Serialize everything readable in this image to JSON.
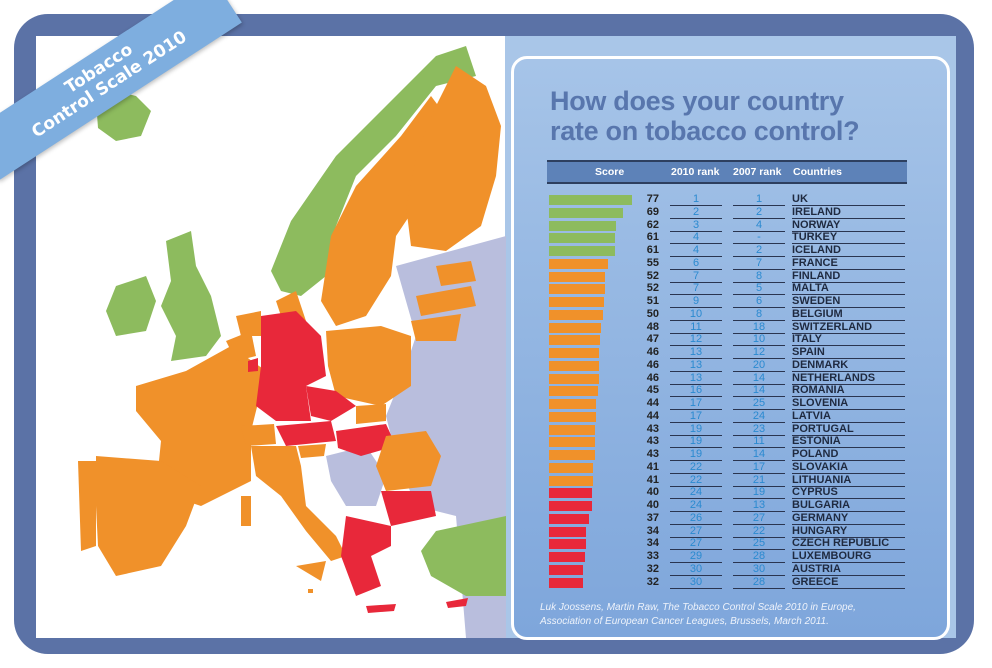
{
  "banner": {
    "line1": "Tobacco",
    "line2": "Control Scale 2010"
  },
  "title": {
    "line1": "How does your country",
    "line2": "rate on tobacco control?"
  },
  "colors": {
    "green": "#8dbb5e",
    "orange": "#f0912a",
    "red": "#e8283a",
    "grey": "#b9bedd",
    "frame": "#5b72a6",
    "panel": "#a9c6e8",
    "title": "#5876ad"
  },
  "chart_data": {
    "type": "table",
    "columns": [
      "Score",
      "2010 rank",
      "2007 rank",
      "Countries"
    ],
    "rows": [
      {
        "score": 77,
        "rank2010": "1",
        "rank2007": "1",
        "country": "UK",
        "group": "green"
      },
      {
        "score": 69,
        "rank2010": "2",
        "rank2007": "2",
        "country": "IRELAND",
        "group": "green"
      },
      {
        "score": 62,
        "rank2010": "3",
        "rank2007": "4",
        "country": "NORWAY",
        "group": "green"
      },
      {
        "score": 61,
        "rank2010": "4",
        "rank2007": "-",
        "country": "TURKEY",
        "group": "green"
      },
      {
        "score": 61,
        "rank2010": "4",
        "rank2007": "2",
        "country": "ICELAND",
        "group": "green"
      },
      {
        "score": 55,
        "rank2010": "6",
        "rank2007": "7",
        "country": "FRANCE",
        "group": "orange"
      },
      {
        "score": 52,
        "rank2010": "7",
        "rank2007": "8",
        "country": "FINLAND",
        "group": "orange"
      },
      {
        "score": 52,
        "rank2010": "7",
        "rank2007": "5",
        "country": "MALTA",
        "group": "orange"
      },
      {
        "score": 51,
        "rank2010": "9",
        "rank2007": "6",
        "country": "SWEDEN",
        "group": "orange"
      },
      {
        "score": 50,
        "rank2010": "10",
        "rank2007": "8",
        "country": "BELGIUM",
        "group": "orange"
      },
      {
        "score": 48,
        "rank2010": "11",
        "rank2007": "18",
        "country": "SWITZERLAND",
        "group": "orange"
      },
      {
        "score": 47,
        "rank2010": "12",
        "rank2007": "10",
        "country": "ITALY",
        "group": "orange"
      },
      {
        "score": 46,
        "rank2010": "13",
        "rank2007": "12",
        "country": "SPAIN",
        "group": "orange"
      },
      {
        "score": 46,
        "rank2010": "13",
        "rank2007": "20",
        "country": "DENMARK",
        "group": "orange"
      },
      {
        "score": 46,
        "rank2010": "13",
        "rank2007": "14",
        "country": "NETHERLANDS",
        "group": "orange"
      },
      {
        "score": 45,
        "rank2010": "16",
        "rank2007": "14",
        "country": "ROMANIA",
        "group": "orange"
      },
      {
        "score": 44,
        "rank2010": "17",
        "rank2007": "25",
        "country": "SLOVENIA",
        "group": "orange"
      },
      {
        "score": 44,
        "rank2010": "17",
        "rank2007": "24",
        "country": "LATVIA",
        "group": "orange"
      },
      {
        "score": 43,
        "rank2010": "19",
        "rank2007": "23",
        "country": "PORTUGAL",
        "group": "orange"
      },
      {
        "score": 43,
        "rank2010": "19",
        "rank2007": "11",
        "country": "ESTONIA",
        "group": "orange"
      },
      {
        "score": 43,
        "rank2010": "19",
        "rank2007": "14",
        "country": "POLAND",
        "group": "orange"
      },
      {
        "score": 41,
        "rank2010": "22",
        "rank2007": "17",
        "country": "SLOVAKIA",
        "group": "orange"
      },
      {
        "score": 41,
        "rank2010": "22",
        "rank2007": "21",
        "country": "LITHUANIA",
        "group": "orange"
      },
      {
        "score": 40,
        "rank2010": "24",
        "rank2007": "19",
        "country": "CYPRUS",
        "group": "red"
      },
      {
        "score": 40,
        "rank2010": "24",
        "rank2007": "13",
        "country": "BULGARIA",
        "group": "red"
      },
      {
        "score": 37,
        "rank2010": "26",
        "rank2007": "27",
        "country": "GERMANY",
        "group": "red"
      },
      {
        "score": 34,
        "rank2010": "27",
        "rank2007": "22",
        "country": "HUNGARY",
        "group": "red"
      },
      {
        "score": 34,
        "rank2010": "27",
        "rank2007": "25",
        "country": "CZECH REPUBLIC",
        "group": "red"
      },
      {
        "score": 33,
        "rank2010": "29",
        "rank2007": "28",
        "country": "LUXEMBOURG",
        "group": "red"
      },
      {
        "score": 32,
        "rank2010": "30",
        "rank2007": "30",
        "country": "AUSTRIA",
        "group": "red"
      },
      {
        "score": 32,
        "rank2010": "30",
        "rank2007": "28",
        "country": "GREECE",
        "group": "red"
      }
    ]
  },
  "source": {
    "line1": "Luk Joossens, Martin Raw, The Tobacco Control Scale 2010  in Europe,",
    "line2": "Association of European Cancer Leagues, Brussels, March 2011."
  }
}
